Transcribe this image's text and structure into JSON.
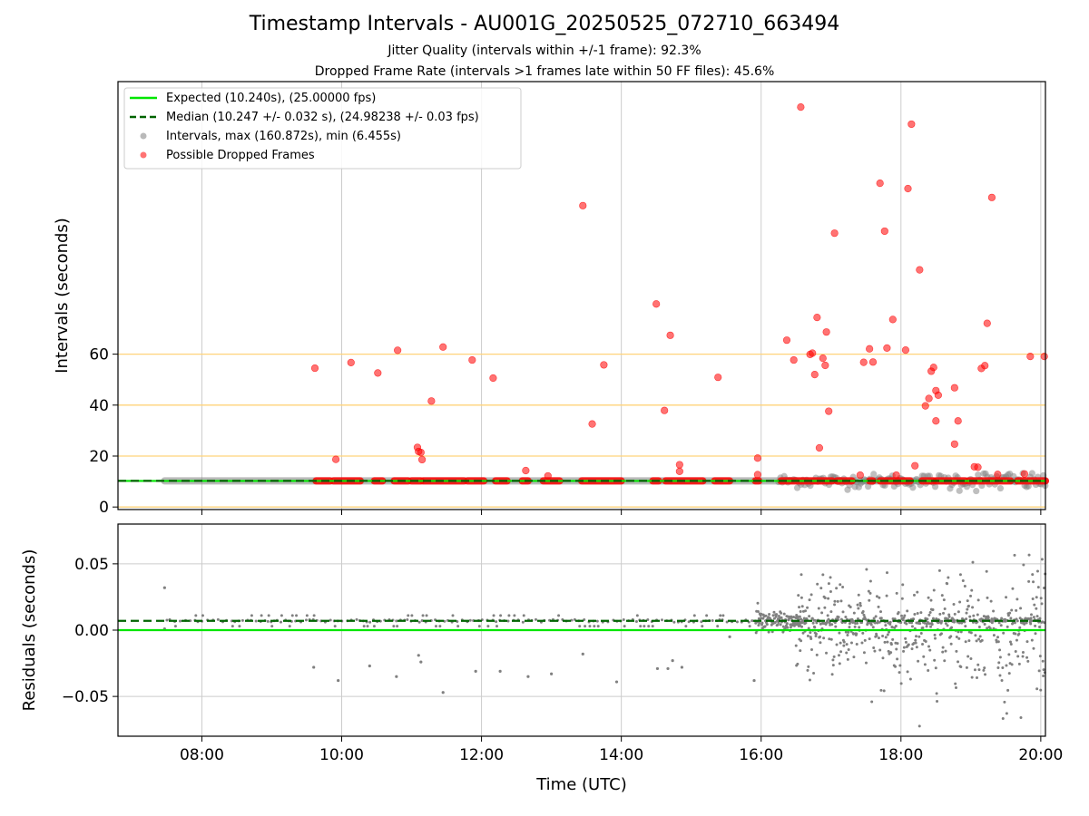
{
  "title": "Timestamp Intervals - AU001G_20250525_072710_663494",
  "subtitle1": "Jitter Quality (intervals within +/-1 frame): 92.3%",
  "subtitle2": "Dropped Frame Rate (intervals >1 frames late within 50 FF files): 45.6%",
  "colors": {
    "expected": "#00e600",
    "median": "#006400",
    "intervals": "#808080",
    "dropped": "#ff0000",
    "hlines": "#ffd37a",
    "grid": "#cccccc"
  },
  "chart_data": [
    {
      "type": "scatter",
      "name": "intervals",
      "ylabel": "Intervals (seconds)",
      "xlim": [
        "06:48",
        "20:04"
      ],
      "ylim": [
        -1,
        167
      ],
      "yticks": [
        "0",
        "20",
        "40",
        "60"
      ],
      "ytick_values": [
        0,
        20,
        40,
        60
      ],
      "hlines": [
        0,
        20,
        40,
        60
      ],
      "legend": {
        "placement": "upper-left",
        "entries": [
          "Expected (10.240s), (25.00000 fps)",
          "Median (10.247 +/- 0.032 s), (24.98238 +/- 0.03 fps)",
          "Intervals, max (160.872s), min (6.455s)",
          "Possible Dropped Frames"
        ]
      },
      "expected_value": 10.24,
      "median_value": 10.247,
      "normal_band": {
        "x_start": "07:28",
        "x_end": "20:04",
        "y": 10.24
      },
      "dropped_band_ranges": [
        [
          "09:38",
          "09:50"
        ],
        [
          "09:53",
          "10:16"
        ],
        [
          "10:28",
          "10:35"
        ],
        [
          "10:45",
          "10:57"
        ],
        [
          "11:00",
          "11:08"
        ],
        [
          "11:10",
          "11:45"
        ],
        [
          "11:48",
          "12:02"
        ],
        [
          "12:12",
          "12:22"
        ],
        [
          "12:35",
          "12:40"
        ],
        [
          "12:53",
          "13:07"
        ],
        [
          "13:26",
          "14:00"
        ],
        [
          "14:27",
          "14:32"
        ],
        [
          "14:38",
          "15:10"
        ],
        [
          "15:20",
          "15:33"
        ],
        [
          "15:55",
          "15:58"
        ],
        [
          "16:17",
          "17:01"
        ],
        [
          "17:05",
          "17:18"
        ],
        [
          "17:33",
          "17:36"
        ],
        [
          "17:42",
          "18:08"
        ],
        [
          "18:18",
          "18:28"
        ],
        [
          "18:30",
          "18:55"
        ],
        [
          "18:58",
          "19:34"
        ],
        [
          "19:40",
          "20:04"
        ]
      ],
      "dropped_points": [
        [
          "09:37",
          54.5
        ],
        [
          "09:55",
          18.7
        ],
        [
          "10:08",
          56.7
        ],
        [
          "10:31",
          52.6
        ],
        [
          "10:48",
          61.5
        ],
        [
          "11:05",
          23.4
        ],
        [
          "11:06",
          21.8
        ],
        [
          "11:08",
          21.4
        ],
        [
          "11:09",
          18.6
        ],
        [
          "11:17",
          41.6
        ],
        [
          "11:27",
          62.8
        ],
        [
          "11:52",
          57.7
        ],
        [
          "12:10",
          50.6
        ],
        [
          "12:38",
          14.3
        ],
        [
          "12:57",
          12.2
        ],
        [
          "13:27",
          118.3
        ],
        [
          "13:35",
          32.6
        ],
        [
          "13:45",
          55.8
        ],
        [
          "14:30",
          79.7
        ],
        [
          "14:37",
          37.9
        ],
        [
          "14:42",
          67.4
        ],
        [
          "14:50",
          16.6
        ],
        [
          "14:50",
          14.0
        ],
        [
          "15:23",
          50.9
        ],
        [
          "15:57",
          19.2
        ],
        [
          "15:57",
          12.7
        ],
        [
          "16:22",
          65.5
        ],
        [
          "16:28",
          57.7
        ],
        [
          "16:34",
          157.0
        ],
        [
          "16:42",
          59.9
        ],
        [
          "16:44",
          60.4
        ],
        [
          "16:46",
          52.0
        ],
        [
          "16:48",
          74.4
        ],
        [
          "16:50",
          23.2
        ],
        [
          "16:53",
          58.4
        ],
        [
          "16:55",
          55.6
        ],
        [
          "16:56",
          68.7
        ],
        [
          "16:58",
          37.6
        ],
        [
          "17:03",
          107.5
        ],
        [
          "17:25",
          12.5
        ],
        [
          "17:28",
          56.8
        ],
        [
          "17:33",
          62.1
        ],
        [
          "17:36",
          56.9
        ],
        [
          "17:42",
          127.1
        ],
        [
          "17:46",
          108.3
        ],
        [
          "17:48",
          62.4
        ],
        [
          "17:53",
          73.6
        ],
        [
          "17:56",
          12.5
        ],
        [
          "18:04",
          61.6
        ],
        [
          "18:06",
          125.0
        ],
        [
          "18:09",
          150.3
        ],
        [
          "18:12",
          16.2
        ],
        [
          "18:16",
          93.1
        ],
        [
          "18:21",
          39.7
        ],
        [
          "18:24",
          42.6
        ],
        [
          "18:26",
          53.3
        ],
        [
          "18:28",
          54.8
        ],
        [
          "18:30",
          33.8
        ],
        [
          "18:30",
          45.7
        ],
        [
          "18:32",
          43.9
        ],
        [
          "18:46",
          24.7
        ],
        [
          "18:46",
          46.8
        ],
        [
          "18:49",
          33.8
        ],
        [
          "19:03",
          15.8
        ],
        [
          "19:06",
          15.6
        ],
        [
          "19:09",
          54.4
        ],
        [
          "19:12",
          55.5
        ],
        [
          "19:14",
          72.1
        ],
        [
          "19:18",
          121.5
        ],
        [
          "19:23",
          12.8
        ],
        [
          "19:46",
          13.0
        ],
        [
          "19:51",
          59.1
        ],
        [
          "20:03",
          59.1
        ]
      ]
    },
    {
      "type": "scatter",
      "name": "residuals",
      "xlabel": "Time (UTC)",
      "ylabel": "Residuals (seconds)",
      "xlim": [
        "06:48",
        "20:04"
      ],
      "ylim": [
        -0.08,
        0.08
      ],
      "xticks": [
        "08:00",
        "10:00",
        "12:00",
        "14:00",
        "16:00",
        "18:00",
        "20:00"
      ],
      "yticks": [
        "0.05",
        "0.00",
        "−0.05"
      ],
      "ytick_values": [
        0.05,
        0.0,
        -0.05
      ],
      "expected_value": 0.0,
      "median_value": 0.007,
      "outlier_points": [
        [
          "07:28",
          0.032
        ],
        [
          "07:28",
          0.001
        ],
        [
          "09:36",
          -0.028
        ],
        [
          "09:57",
          -0.038
        ],
        [
          "10:24",
          -0.027
        ],
        [
          "10:47",
          -0.035
        ],
        [
          "11:06",
          -0.019
        ],
        [
          "11:08",
          -0.024
        ],
        [
          "11:27",
          -0.047
        ],
        [
          "11:55",
          -0.031
        ],
        [
          "12:16",
          -0.031
        ],
        [
          "12:40",
          -0.035
        ],
        [
          "13:00",
          -0.033
        ],
        [
          "13:27",
          -0.018
        ],
        [
          "13:56",
          -0.039
        ],
        [
          "14:31",
          -0.029
        ],
        [
          "14:40",
          -0.029
        ],
        [
          "14:44",
          -0.023
        ],
        [
          "14:52",
          -0.028
        ],
        [
          "15:33",
          -0.005
        ],
        [
          "15:54",
          -0.038
        ]
      ],
      "scatter_summary": {
        "dense_from": "16:00",
        "early_band_y": 0.007,
        "late_spread": 0.08
      }
    }
  ]
}
